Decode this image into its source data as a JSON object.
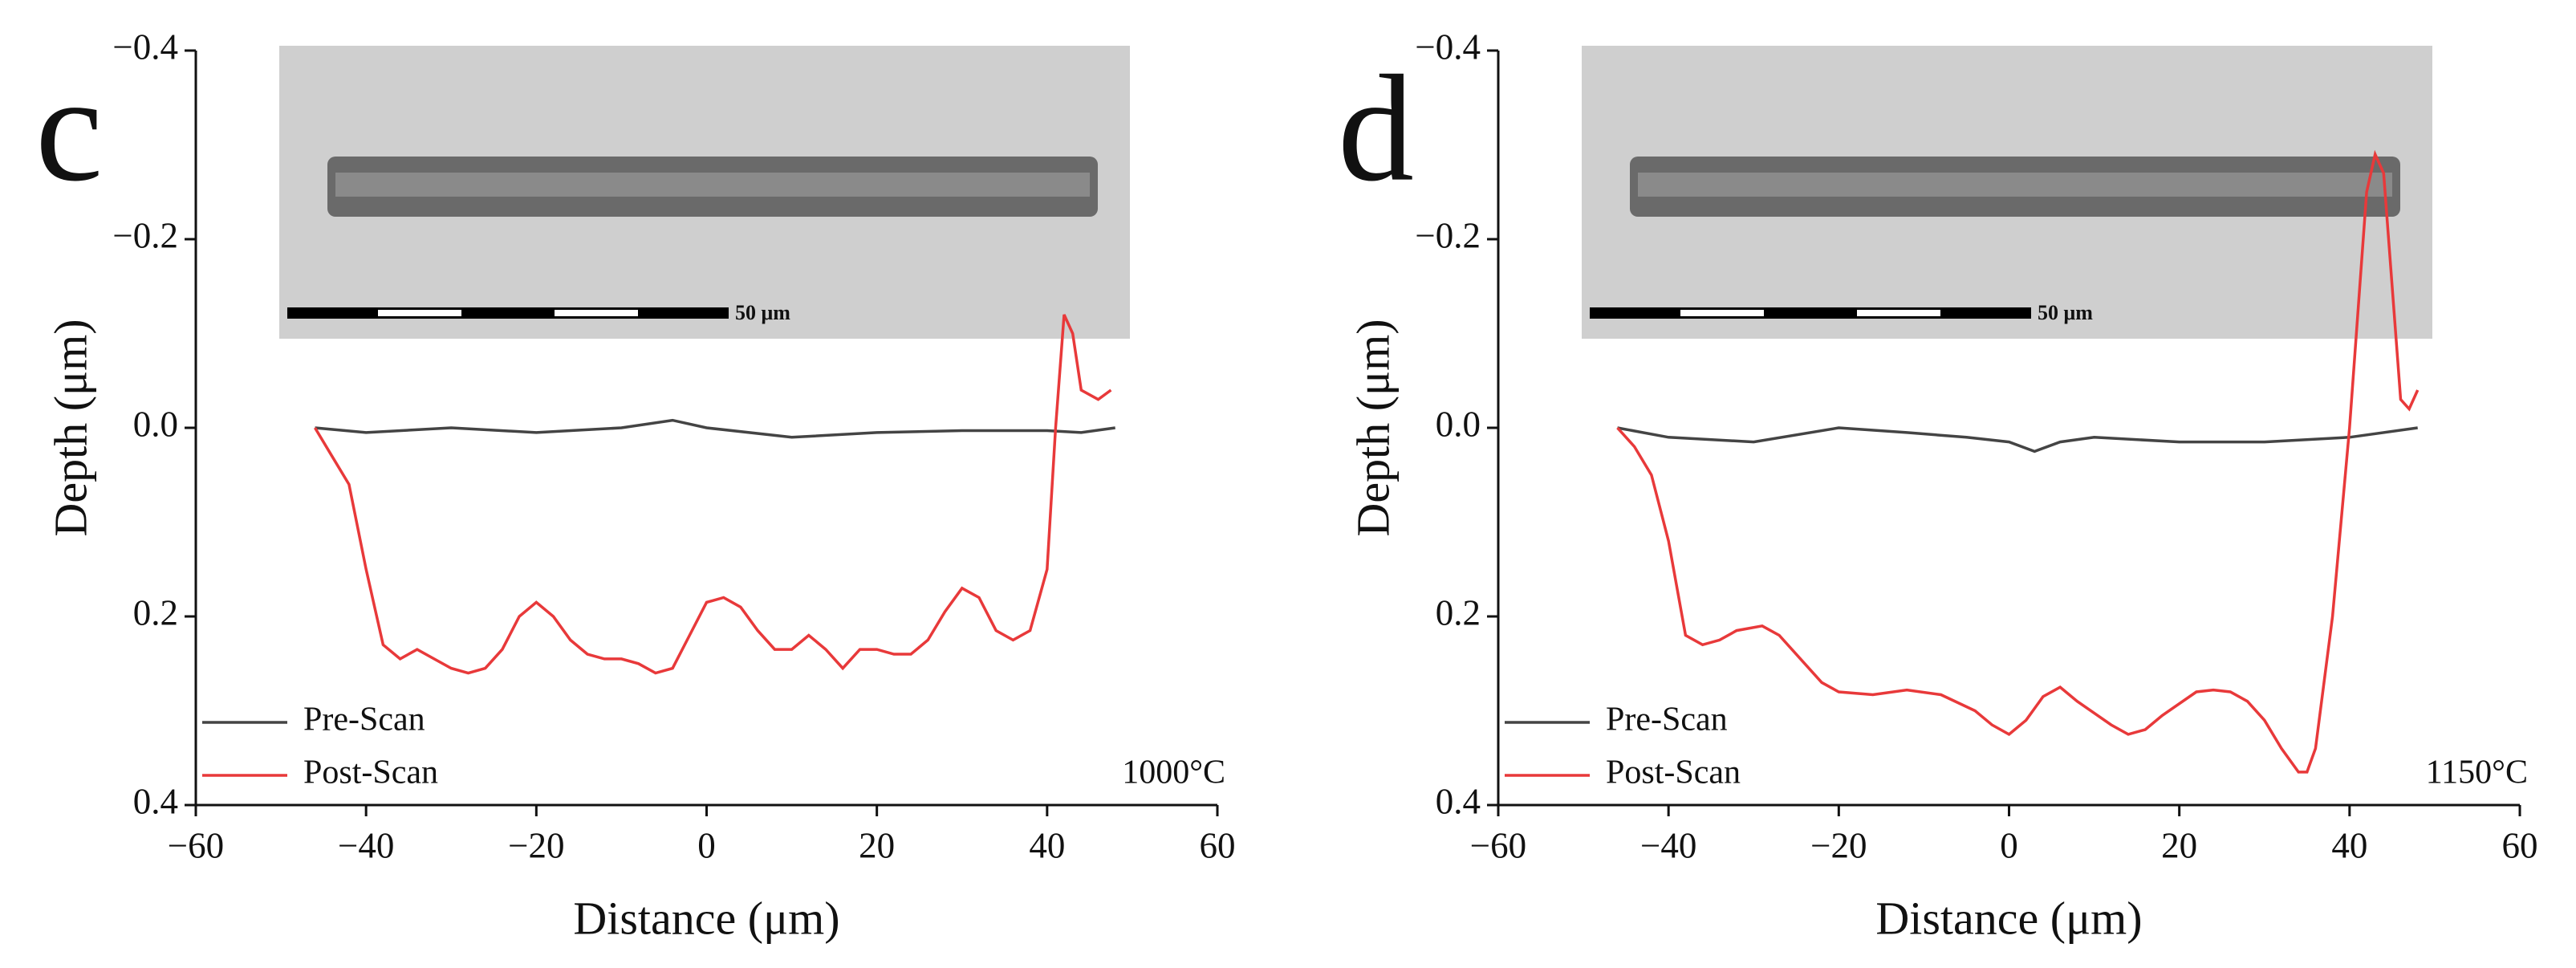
{
  "chart_data": [
    {
      "type": "line",
      "panel_label": "c",
      "xlabel": "Distance (μm)",
      "ylabel": "Depth (μm)",
      "annotation": "1000°C",
      "scale_bar_label": "50 μm",
      "xlim": [
        -60,
        60
      ],
      "ylim": [
        -0.4,
        0.4
      ],
      "y_inverted": true,
      "legend": "lower left",
      "xticks": [
        {
          "value": -60,
          "label": "−60"
        },
        {
          "value": -40,
          "label": "−40"
        },
        {
          "value": -20,
          "label": "−20"
        },
        0,
        20,
        40,
        60
      ],
      "yticks": [
        {
          "value": -0.4,
          "label": "−0.4"
        },
        {
          "value": -0.2,
          "label": "−0.2"
        },
        {
          "value": 0,
          "label": "0.0"
        },
        0.2,
        0.4
      ],
      "series": [
        {
          "name": "Pre-Scan",
          "color": "#444444",
          "x": [
            -46,
            -40,
            -30,
            -20,
            -10,
            -4,
            0,
            10,
            20,
            30,
            40,
            44,
            48
          ],
          "values": [
            0,
            0.005,
            0,
            0.005,
            0,
            -0.008,
            0,
            0.01,
            0.005,
            0.003,
            0.003,
            0.005,
            0
          ]
        },
        {
          "name": "Post-Scan",
          "color": "#e8393a",
          "x": [
            -46,
            -44,
            -42,
            -40,
            -38,
            -36,
            -34,
            -32,
            -30,
            -28,
            -26,
            -24,
            -22,
            -20,
            -18,
            -16,
            -14,
            -12,
            -10,
            -8,
            -6,
            -4,
            -2,
            0,
            2,
            4,
            6,
            8,
            10,
            12,
            14,
            16,
            18,
            20,
            22,
            24,
            26,
            28,
            30,
            32,
            34,
            36,
            38,
            40,
            41,
            42,
            43,
            44,
            46,
            47.5
          ],
          "values": [
            0,
            0.03,
            0.06,
            0.15,
            0.23,
            0.245,
            0.235,
            0.245,
            0.255,
            0.26,
            0.255,
            0.235,
            0.2,
            0.185,
            0.2,
            0.225,
            0.24,
            0.245,
            0.245,
            0.25,
            0.26,
            0.255,
            0.22,
            0.185,
            0.18,
            0.19,
            0.215,
            0.235,
            0.235,
            0.22,
            0.235,
            0.255,
            0.235,
            0.235,
            0.24,
            0.24,
            0.225,
            0.195,
            0.17,
            0.18,
            0.215,
            0.225,
            0.215,
            0.15,
            0,
            -0.12,
            -0.1,
            -0.04,
            -0.03,
            -0.04
          ]
        }
      ]
    },
    {
      "type": "line",
      "panel_label": "d",
      "xlabel": "Distance (μm)",
      "ylabel": "Depth (μm)",
      "annotation": "1150°C",
      "scale_bar_label": "50 μm",
      "xlim": [
        -60,
        60
      ],
      "ylim": [
        -0.4,
        0.4
      ],
      "y_inverted": true,
      "legend": "lower left",
      "xticks": [
        {
          "value": -60,
          "label": "−60"
        },
        {
          "value": -40,
          "label": "−40"
        },
        {
          "value": -20,
          "label": "−20"
        },
        0,
        20,
        40,
        60
      ],
      "yticks": [
        {
          "value": -0.4,
          "label": "−0.4"
        },
        {
          "value": -0.2,
          "label": "−0.2"
        },
        {
          "value": 0,
          "label": "0.0"
        },
        0.2,
        0.4
      ],
      "series": [
        {
          "name": "Pre-Scan",
          "color": "#444444",
          "x": [
            -46,
            -40,
            -30,
            -20,
            -12,
            -5,
            0,
            3,
            6,
            10,
            20,
            30,
            40,
            48
          ],
          "values": [
            0,
            0.01,
            0.015,
            0,
            0.005,
            0.01,
            0.015,
            0.025,
            0.015,
            0.01,
            0.015,
            0.015,
            0.01,
            0
          ]
        },
        {
          "name": "Post-Scan",
          "color": "#e8393a",
          "x": [
            -46,
            -44,
            -42,
            -40,
            -38,
            -36,
            -34,
            -32,
            -29,
            -27,
            -24,
            -22,
            -20,
            -16,
            -12,
            -8,
            -4,
            -2,
            0,
            2,
            4,
            6,
            8,
            12,
            14,
            16,
            18,
            22,
            24,
            26,
            28,
            30,
            32,
            34,
            35,
            36,
            38,
            40,
            42,
            43,
            44,
            45,
            46,
            47,
            48
          ],
          "values": [
            0,
            0.02,
            0.05,
            0.12,
            0.22,
            0.23,
            0.225,
            0.215,
            0.21,
            0.22,
            0.25,
            0.27,
            0.28,
            0.283,
            0.278,
            0.283,
            0.3,
            0.315,
            0.325,
            0.31,
            0.285,
            0.275,
            0.29,
            0.315,
            0.325,
            0.32,
            0.305,
            0.28,
            0.278,
            0.28,
            0.29,
            0.31,
            0.34,
            0.365,
            0.365,
            0.34,
            0.2,
            0,
            -0.25,
            -0.29,
            -0.27,
            -0.15,
            -0.03,
            -0.02,
            -0.04
          ]
        }
      ]
    }
  ]
}
